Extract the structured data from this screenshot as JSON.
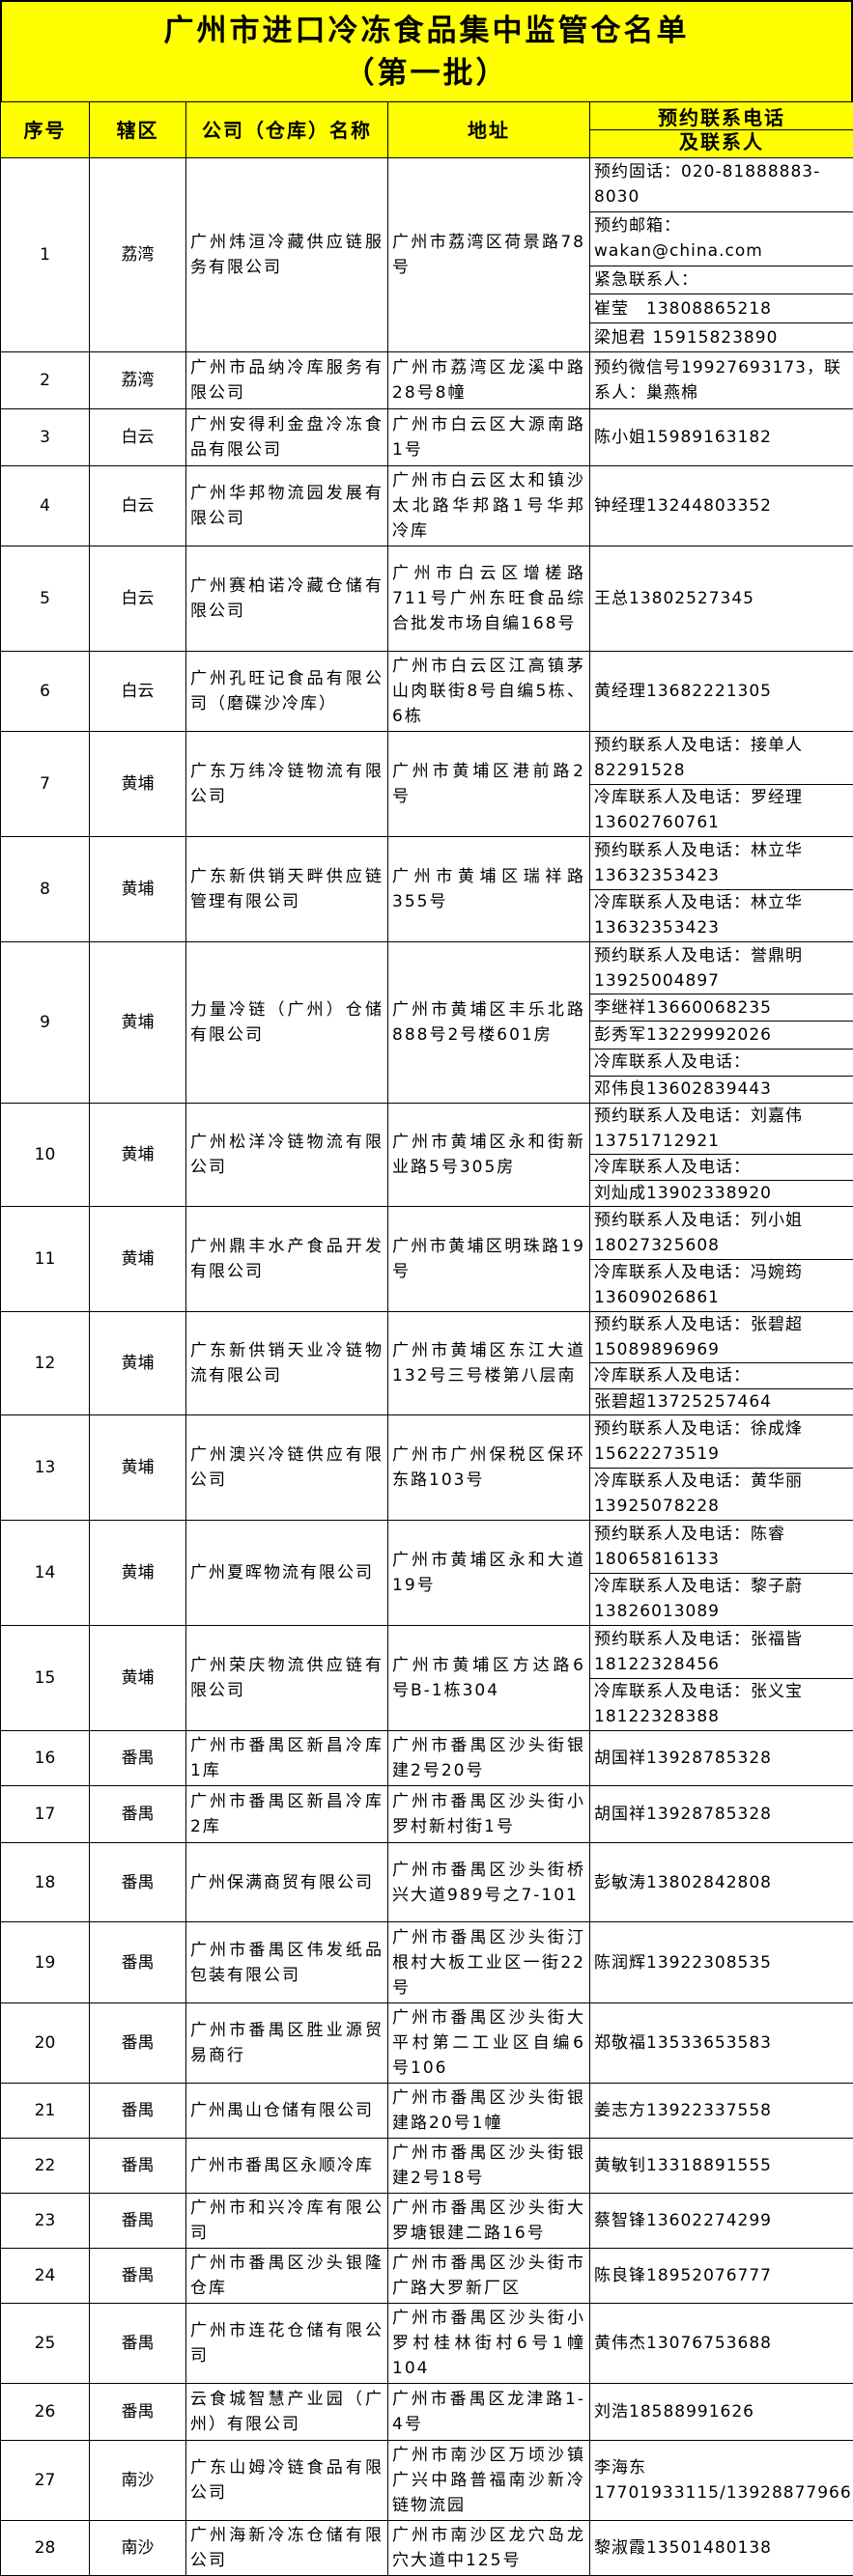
{
  "header": {
    "title": "广州市进口冷冻食品集中监管仓名单",
    "subtitle": "（第一批）"
  },
  "table": {
    "columns": {
      "no": "序号",
      "district": "辖区",
      "name": "公司（仓库）名称",
      "address": "地址",
      "contact": [
        "预约联系电话",
        "及联系人"
      ]
    },
    "rows": [
      {
        "no": 1,
        "district": "荔湾",
        "name": "广州炜洹冷藏供应链服务有限公司",
        "address": "广州市荔湾区荷景路78号",
        "contacts": [
          "预约固话：020-81888883-8030",
          "预约邮箱：wakan@china.com",
          "紧急联系人：",
          "崔莹　13808865218",
          "梁旭君 15915823890"
        ]
      },
      {
        "no": 2,
        "district": "荔湾",
        "name": "广州市品纳冷库服务有限公司",
        "address": "广州市荔湾区龙溪中路28号8幢",
        "contacts": [
          "预约微信号19927693173，联系人：巢燕棉"
        ]
      },
      {
        "no": 3,
        "district": "白云",
        "name": "广州安得利金盘冷冻食品有限公司",
        "address": "广州市白云区大源南路1号",
        "contacts": [
          "陈小姐15989163182"
        ]
      },
      {
        "no": 4,
        "district": "白云",
        "name": "广州华邦物流园发展有限公司",
        "address": "广州市白云区太和镇沙太北路华邦路1号华邦冷库",
        "contacts": [
          "钟经理13244803352"
        ]
      },
      {
        "no": 5,
        "district": "白云",
        "name": "广州赛柏诺冷藏仓储有限公司",
        "address": "广州市白云区增槎路711号广州东旺食品综合批发市场自编168号",
        "contacts": [
          "王总13802527345"
        ]
      },
      {
        "no": 6,
        "district": "白云",
        "name": "广州孔旺记食品有限公司（磨碟沙冷库）",
        "address": "广州市白云区江高镇茅山肉联街8号自编5栋、6栋",
        "contacts": [
          "黄经理13682221305"
        ]
      },
      {
        "no": 7,
        "district": "黄埔",
        "name": "广东万纬冷链物流有限公司",
        "address": "广州市黄埔区港前路2号",
        "contacts": [
          "预约联系人及电话：接单人82291528",
          "冷库联系人及电话：罗经理13602760761"
        ]
      },
      {
        "no": 8,
        "district": "黄埔",
        "name": "广东新供销天畔供应链管理有限公司",
        "address": "广州市黄埔区瑞祥路355号",
        "contacts": [
          "预约联系人及电话：林立华13632353423",
          "冷库联系人及电话：林立华13632353423"
        ]
      },
      {
        "no": 9,
        "district": "黄埔",
        "name": "力量冷链（广州）仓储有限公司",
        "address": "广州市黄埔区丰乐北路888号2号楼601房",
        "contacts": [
          "预约联系人及电话：誉鼎明13925004897",
          "李继祥13660068235",
          "彭秀军13229992026",
          "冷库联系人及电话：",
          "邓伟良13602839443"
        ]
      },
      {
        "no": 10,
        "district": "黄埔",
        "name": "广州松洋冷链物流有限公司",
        "address": "广州市黄埔区永和街新业路5号305房",
        "contacts": [
          "预约联系人及电话：刘嘉伟13751712921",
          "冷库联系人及电话：",
          "刘灿成13902338920"
        ]
      },
      {
        "no": 11,
        "district": "黄埔",
        "name": "广州鼎丰水产食品开发有限公司",
        "address": "广州市黄埔区明珠路19号",
        "contacts": [
          "预约联系人及电话：列小姐18027325608",
          "冷库联系人及电话：冯婉筠13609026861"
        ]
      },
      {
        "no": 12,
        "district": "黄埔",
        "name": "广东新供销天业冷链物流有限公司",
        "address": "广州市黄埔区东江大道132号三号楼第八层南",
        "contacts": [
          "预约联系人及电话：张碧超15089896969",
          "冷库联系人及电话：",
          "张碧超13725257464"
        ]
      },
      {
        "no": 13,
        "district": "黄埔",
        "name": "广州澳兴冷链供应有限公司",
        "address": "广州市广州保税区保环东路103号",
        "contacts": [
          "预约联系人及电话：徐成烽15622273519",
          "冷库联系人及电话：黄华丽13925078228"
        ]
      },
      {
        "no": 14,
        "district": "黄埔",
        "name": "广州夏晖物流有限公司",
        "address": "广州市黄埔区永和大道19号",
        "contacts": [
          "预约联系人及电话：陈睿18065816133",
          "冷库联系人及电话：黎子蔚13826013089"
        ]
      },
      {
        "no": 15,
        "district": "黄埔",
        "name": "广州荣庆物流供应链有限公司",
        "address": "广州市黄埔区方达路6号B-1栋304",
        "contacts": [
          "预约联系人及电话：张福皆18122328456",
          "冷库联系人及电话：张义宝18122328388"
        ]
      },
      {
        "no": 16,
        "district": "番禺",
        "name": "广州市番禺区新昌冷库1库",
        "address": "广州市番禺区沙头街银建2号20号",
        "contacts": [
          "胡国祥13928785328"
        ]
      },
      {
        "no": 17,
        "district": "番禺",
        "name": "广州市番禺区新昌冷库2库",
        "address": "广州市番禺区沙头街小罗村新村街1号",
        "contacts": [
          "胡国祥13928785328"
        ]
      },
      {
        "no": 18,
        "district": "番禺",
        "name": "广州保满商贸有限公司",
        "address": "广州市番禺区沙头街桥兴大道989号之7-101",
        "contacts": [
          "彭敏涛13802842808"
        ]
      },
      {
        "no": 19,
        "district": "番禺",
        "name": "广州市番禺区伟发纸品包装有限公司",
        "address": "广州市番禺区沙头街汀根村大板工业区一街22号",
        "contacts": [
          "陈润辉13922308535"
        ]
      },
      {
        "no": 20,
        "district": "番禺",
        "name": "广州市番禺区胜业源贸易商行",
        "address": "广州市番禺区沙头街大平村第二工业区自编6号106",
        "contacts": [
          "郑敬福13533653583"
        ]
      },
      {
        "no": 21,
        "district": "番禺",
        "name": "广州禺山仓储有限公司",
        "address": "广州市番禺区沙头街银建路20号1幢",
        "contacts": [
          "姜志方13922337558"
        ]
      },
      {
        "no": 22,
        "district": "番禺",
        "name": "广州市番禺区永顺冷库",
        "address": "广州市番禺区沙头街银建2号18号",
        "contacts": [
          "黄敏钊13318891555"
        ]
      },
      {
        "no": 23,
        "district": "番禺",
        "name": "广州市和兴冷库有限公司",
        "address": "广州市番禺区沙头街大罗塘银建二路16号",
        "contacts": [
          "蔡智锋13602274299"
        ]
      },
      {
        "no": 24,
        "district": "番禺",
        "name": "广州市番禺区沙头银隆仓库",
        "address": "广州市番禺区沙头街市广路大罗新厂区",
        "contacts": [
          "陈良锋18952076777"
        ]
      },
      {
        "no": 25,
        "district": "番禺",
        "name": "广州市连花仓储有限公司",
        "address": "广州市番禺区沙头街小罗村桂林街村6号1幢104",
        "contacts": [
          "黄伟杰13076753688"
        ]
      },
      {
        "no": 26,
        "district": "番禺",
        "name": "云食城智慧产业园（广州）有限公司",
        "address": "广州市番禺区龙津路1-4号",
        "contacts": [
          "刘浩18588991626"
        ]
      },
      {
        "no": 27,
        "district": "南沙",
        "name": "广东山姆冷链食品有限公司",
        "address": "广州市南沙区万顷沙镇广兴中路普福南沙新冷链物流园",
        "contacts": [
          "李海东 17701933115/13928877966"
        ]
      },
      {
        "no": 28,
        "district": "南沙",
        "name": "广州海新冷冻仓储有限公司",
        "address": "广州市南沙区龙穴岛龙穴大道中125号",
        "contacts": [
          "黎淑霞13501480138"
        ]
      }
    ]
  }
}
